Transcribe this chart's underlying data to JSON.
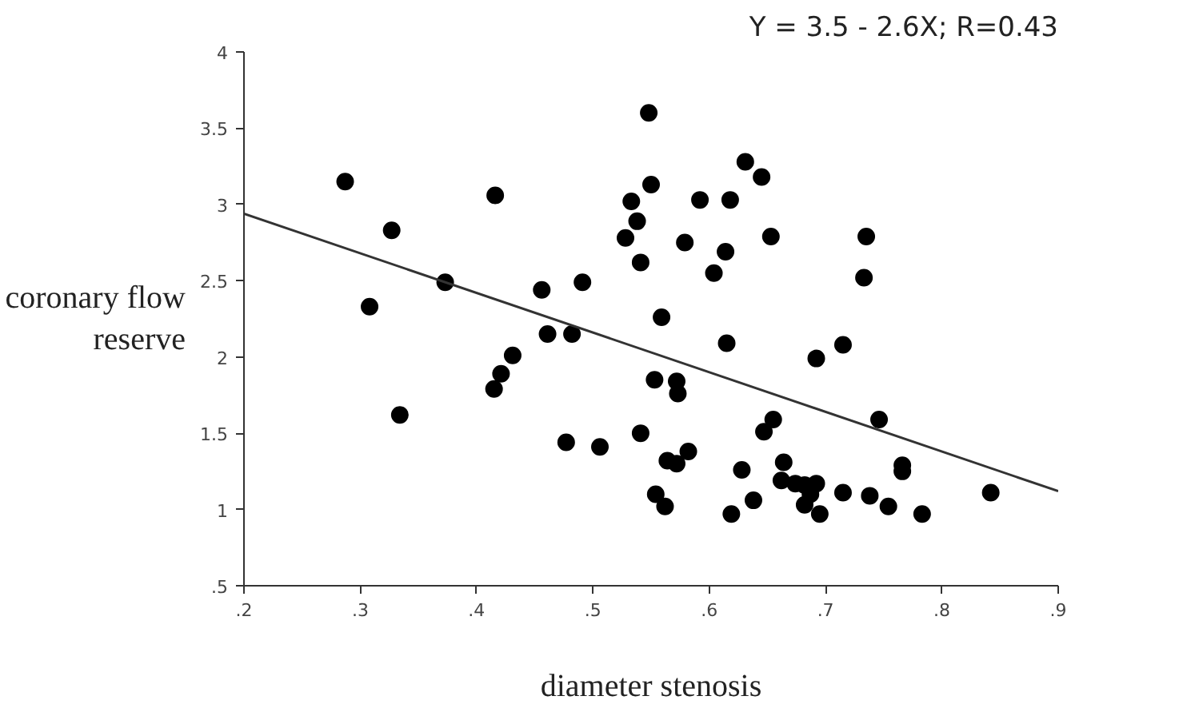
{
  "chart_data": {
    "type": "scatter",
    "xlabel": "diameter stenosis",
    "ylabel": "coronary flow reserve",
    "annotations": [
      "Y = 3.5 - 2.6X; R=0.43"
    ],
    "xlim": [
      0.2,
      0.9
    ],
    "ylim": [
      0.5,
      4
    ],
    "xticks": [
      {
        "value": 0.2,
        "label": ".2"
      },
      {
        "value": 0.3,
        "label": ".3"
      },
      {
        "value": 0.4,
        "label": ".4"
      },
      {
        "value": 0.5,
        "label": ".5"
      },
      {
        "value": 0.6,
        "label": ".6"
      },
      {
        "value": 0.7,
        "label": ".7"
      },
      {
        "value": 0.8,
        "label": ".8"
      },
      {
        "value": 0.9,
        "label": ".9"
      }
    ],
    "yticks": [
      {
        "value": 0.5,
        "label": ".5"
      },
      1,
      1.5,
      2,
      2.5,
      3,
      3.5,
      4
    ],
    "grid": false,
    "series": [
      {
        "color": "#000000",
        "marker": "circle",
        "x": [
          0.287,
          0.327,
          0.308,
          0.334,
          0.373,
          0.416,
          0.415,
          0.421,
          0.431,
          0.456,
          0.461,
          0.477,
          0.482,
          0.491,
          0.506,
          0.528,
          0.533,
          0.538,
          0.541,
          0.541,
          0.548,
          0.55,
          0.559,
          0.553,
          0.554,
          0.562,
          0.572,
          0.573,
          0.579,
          0.564,
          0.572,
          0.582,
          0.631,
          0.645,
          0.592,
          0.618,
          0.614,
          0.604,
          0.653,
          0.735,
          0.733,
          0.615,
          0.692,
          0.715,
          0.746,
          0.655,
          0.647,
          0.628,
          0.664,
          0.766,
          0.766,
          0.662,
          0.674,
          0.682,
          0.692,
          0.682,
          0.695,
          0.638,
          0.619,
          0.715,
          0.738,
          0.754,
          0.783,
          0.842,
          0.687
        ],
        "values": [
          3.15,
          2.83,
          2.33,
          1.62,
          2.49,
          3.06,
          1.79,
          1.89,
          2.01,
          2.44,
          2.15,
          1.44,
          2.15,
          2.49,
          1.41,
          2.78,
          3.02,
          2.89,
          2.62,
          1.5,
          3.6,
          3.13,
          2.26,
          1.85,
          1.1,
          1.02,
          1.84,
          1.76,
          2.75,
          1.32,
          1.3,
          1.38,
          3.28,
          3.18,
          3.03,
          3.03,
          2.69,
          2.55,
          2.79,
          2.79,
          2.52,
          2.09,
          1.99,
          2.08,
          1.59,
          1.59,
          1.51,
          1.26,
          1.31,
          1.29,
          1.25,
          1.19,
          1.17,
          1.16,
          1.17,
          1.03,
          0.97,
          1.06,
          0.97,
          1.11,
          1.09,
          1.02,
          0.97,
          1.11,
          1.1
        ]
      },
      {
        "type": "line",
        "marker": "none",
        "color": "#333333",
        "x": [
          0.2,
          0.9
        ],
        "values": [
          2.94,
          1.12
        ]
      }
    ]
  }
}
